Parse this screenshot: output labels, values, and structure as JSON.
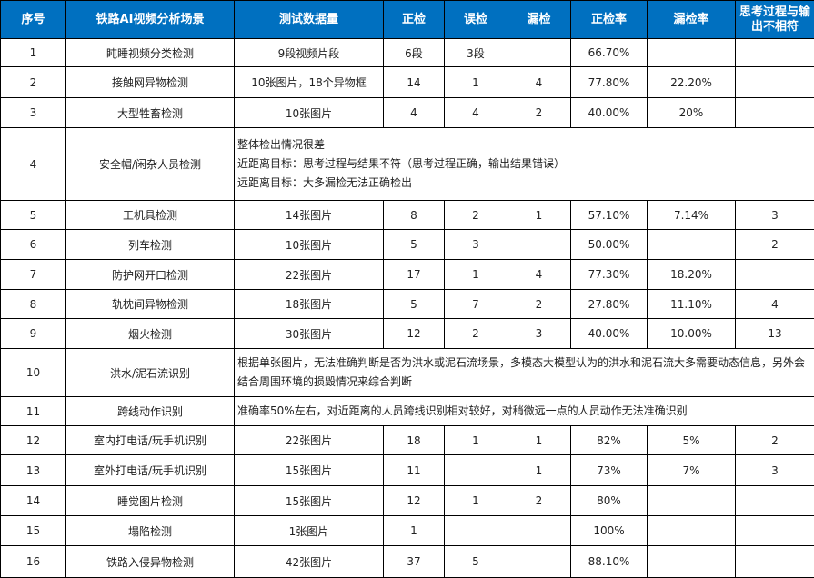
{
  "headers": [
    "序号",
    "铁路AI视频分析场景",
    "测试数据量",
    "正检",
    "误检",
    "漏检",
    "正检率",
    "漏检率",
    "思考过程与输出不相符"
  ],
  "rows": [
    {
      "cells": [
        "1",
        "盹睡视频分类检测",
        "9段视频片段",
        "6段",
        "3段",
        "",
        "66.70%",
        "",
        ""
      ]
    },
    {
      "cells": [
        "2",
        "接触网异物检测",
        "10张图片，18个异物框",
        "14",
        "1",
        "4",
        "77.80%",
        "22.20%",
        ""
      ]
    },
    {
      "cells": [
        "3",
        "大型牲畜检测",
        "10张图片",
        "4",
        "4",
        "2",
        "40.00%",
        "20%",
        ""
      ]
    },
    {
      "cells": [
        "4",
        "安全帽/闲杂人员检测"
      ],
      "note": [
        "整体检出情况很差",
        "近距离目标：思考过程与结果不符（思考过程正确，输出结果错误）",
        "远距离目标：大多漏检无法正确检出"
      ]
    },
    {
      "cells": [
        "5",
        "工机具检测",
        "14张图片",
        "8",
        "2",
        "1",
        "57.10%",
        "7.14%",
        "3"
      ]
    },
    {
      "cells": [
        "6",
        "列车检测",
        "10张图片",
        "5",
        "3",
        "",
        "50.00%",
        "",
        "2"
      ]
    },
    {
      "cells": [
        "7",
        "防护网开口检测",
        "22张图片",
        "17",
        "1",
        "4",
        "77.30%",
        "18.20%",
        ""
      ]
    },
    {
      "cells": [
        "8",
        "轨枕间异物检测",
        "18张图片",
        "5",
        "7",
        "2",
        "27.80%",
        "11.10%",
        "4"
      ]
    },
    {
      "cells": [
        "9",
        "烟火检测",
        "30张图片",
        "12",
        "2",
        "3",
        "40.00%",
        "10.00%",
        "13"
      ]
    },
    {
      "cells": [
        "10",
        "洪水/泥石流识别"
      ],
      "note": [
        "根据单张图片，无法准确判断是否为洪水或泥石流场景，多模态大模型认为的洪水和泥石流大多需要动态信息，另外会结合周围环境的损毁情况来综合判断"
      ]
    },
    {
      "cells": [
        "11",
        "跨线动作识别"
      ],
      "note": [
        "准确率50%左右，对近距离的人员跨线识别相对较好，对稍微远一点的人员动作无法准确识别"
      ]
    },
    {
      "cells": [
        "12",
        "室内打电话/玩手机识别",
        "22张图片",
        "18",
        "1",
        "1",
        "82%",
        "5%",
        "2"
      ]
    },
    {
      "cells": [
        "13",
        "室外打电话/玩手机识别",
        "15张图片",
        "11",
        "",
        "1",
        "73%",
        "7%",
        "3"
      ]
    },
    {
      "cells": [
        "14",
        "睡觉图片检测",
        "15张图片",
        "12",
        "1",
        "2",
        "80%",
        "",
        ""
      ]
    },
    {
      "cells": [
        "15",
        "塌陷检测",
        "1张图片",
        "1",
        "",
        "",
        "100%",
        "",
        ""
      ]
    },
    {
      "cells": [
        "16",
        "铁路入侵异物检测",
        "42张图片",
        "37",
        "5",
        "",
        "88.10%",
        "",
        ""
      ]
    }
  ],
  "colors": {
    "header_bg": "#0070C0"
  }
}
